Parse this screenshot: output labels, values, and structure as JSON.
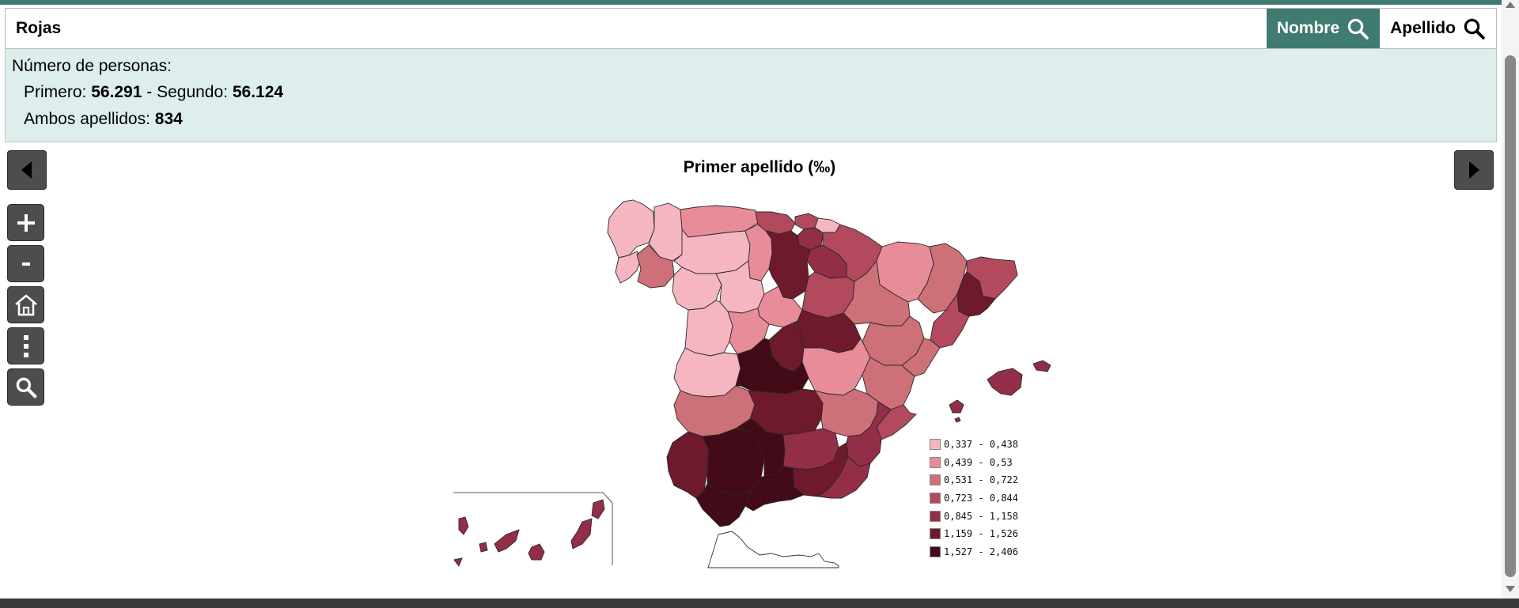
{
  "search": {
    "value": "Rojas"
  },
  "buttons": {
    "nombre": "Nombre",
    "apellido": "Apellido"
  },
  "info": {
    "label": "Número de personas:",
    "primero_label": "Primero: ",
    "primero_value": "56.291",
    "segundo_label": " - Segundo: ",
    "segundo_value": "56.124",
    "ambos_label": "Ambos apellidos: ",
    "ambos_value": "834"
  },
  "map": {
    "title": "Primer apellido (‰)"
  },
  "tools": {
    "zoom_in": "+",
    "zoom_out": "-"
  },
  "colors": {
    "accent": "#3f7b70",
    "panel": "#deeeec",
    "c1": "#f5b6c1",
    "c2": "#e88c99",
    "c3": "#cd7078",
    "c4": "#b2495d",
    "c5": "#922e47",
    "c6": "#6e1a2c",
    "c7": "#430a17"
  },
  "legend": [
    {
      "label": "0,337 - 0,438",
      "color": "#f5b6c1"
    },
    {
      "label": "0,439 - 0,53",
      "color": "#e88c99"
    },
    {
      "label": "0,531 - 0,722",
      "color": "#cd7078"
    },
    {
      "label": "0,723 - 0,844",
      "color": "#b2495d"
    },
    {
      "label": "0,845 - 1,158",
      "color": "#922e47"
    },
    {
      "label": "1,159 - 1,526",
      "color": "#6e1a2c"
    },
    {
      "label": "1,527 - 2,406",
      "color": "#430a17"
    }
  ]
}
